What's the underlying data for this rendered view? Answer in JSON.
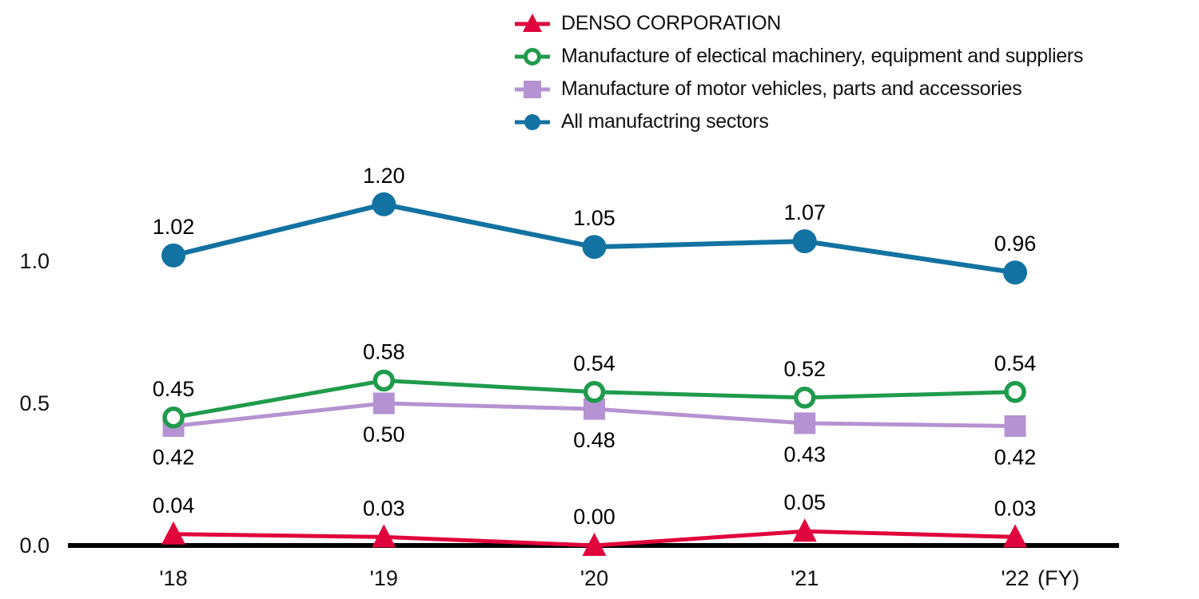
{
  "page": {
    "background_color": "#ffffff",
    "text_color": "#111111"
  },
  "chart_data": {
    "type": "line",
    "title": "",
    "categories": [
      "'18",
      "'19",
      "'20",
      "'21",
      "'22"
    ],
    "x_axis_suffix": "(FY)",
    "y_tick_values": [
      0.0,
      0.5,
      1.0
    ],
    "y_tick_labels": [
      "0.0",
      "0.5",
      "1.0"
    ],
    "ylim": [
      0,
      1.32
    ],
    "grid": false,
    "legend_position": "top-center",
    "axis_color": "#000000",
    "series": [
      {
        "name": "DENSO CORPORATION",
        "marker": "triangle",
        "color": "#e0053c",
        "values": [
          0.04,
          0.03,
          0.0,
          0.05,
          0.03
        ],
        "value_labels": [
          "0.04",
          "0.03",
          "0.00",
          "0.05",
          "0.03"
        ],
        "label_position": "above"
      },
      {
        "name": "Manufacture of electical machinery, equipment and suppliers",
        "marker": "open-circle",
        "color": "#1f9b4c",
        "values": [
          0.45,
          0.58,
          0.54,
          0.52,
          0.54
        ],
        "value_labels": [
          "0.45",
          "0.58",
          "0.54",
          "0.52",
          "0.54"
        ],
        "label_position": "above"
      },
      {
        "name": "Manufacture of motor vehicles, parts and accessories",
        "marker": "square",
        "color": "#b593d2",
        "values": [
          0.42,
          0.5,
          0.48,
          0.43,
          0.42
        ],
        "value_labels": [
          "0.42",
          "0.50",
          "0.48",
          "0.43",
          "0.42"
        ],
        "label_position": "below"
      },
      {
        "name": "All manufactring sectors",
        "marker": "circle",
        "color": "#1272a2",
        "values": [
          1.02,
          1.2,
          1.05,
          1.07,
          0.96
        ],
        "value_labels": [
          "1.02",
          "1.20",
          "1.05",
          "1.07",
          "0.96"
        ],
        "label_position": "above"
      }
    ]
  }
}
